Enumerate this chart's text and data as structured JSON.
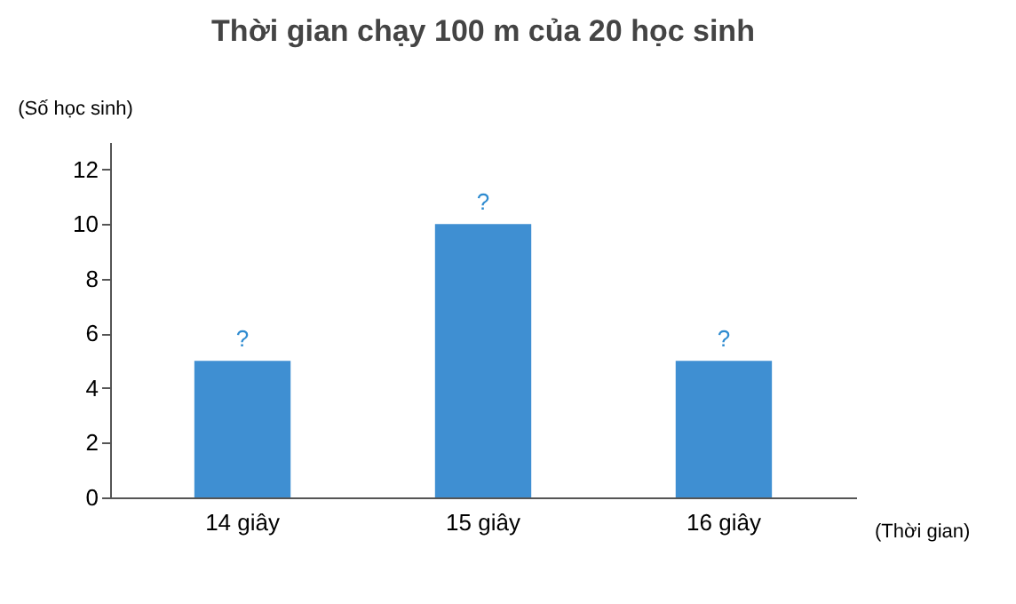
{
  "chart_data": {
    "type": "bar",
    "title": "Thời gian chạy 100 m của 20 học sinh",
    "xlabel": "(Thời gian)",
    "ylabel": "(Số học sinh)",
    "categories": [
      "14 giây",
      "15 giây",
      "16 giây"
    ],
    "values": [
      5,
      10,
      5
    ],
    "color": "#3f8fd2",
    "value_labels": [
      "?",
      "?",
      "?"
    ],
    "ylim": [
      0,
      13
    ],
    "yticks": [
      0,
      2,
      4,
      6,
      8,
      10,
      12
    ],
    "grid": false
  }
}
